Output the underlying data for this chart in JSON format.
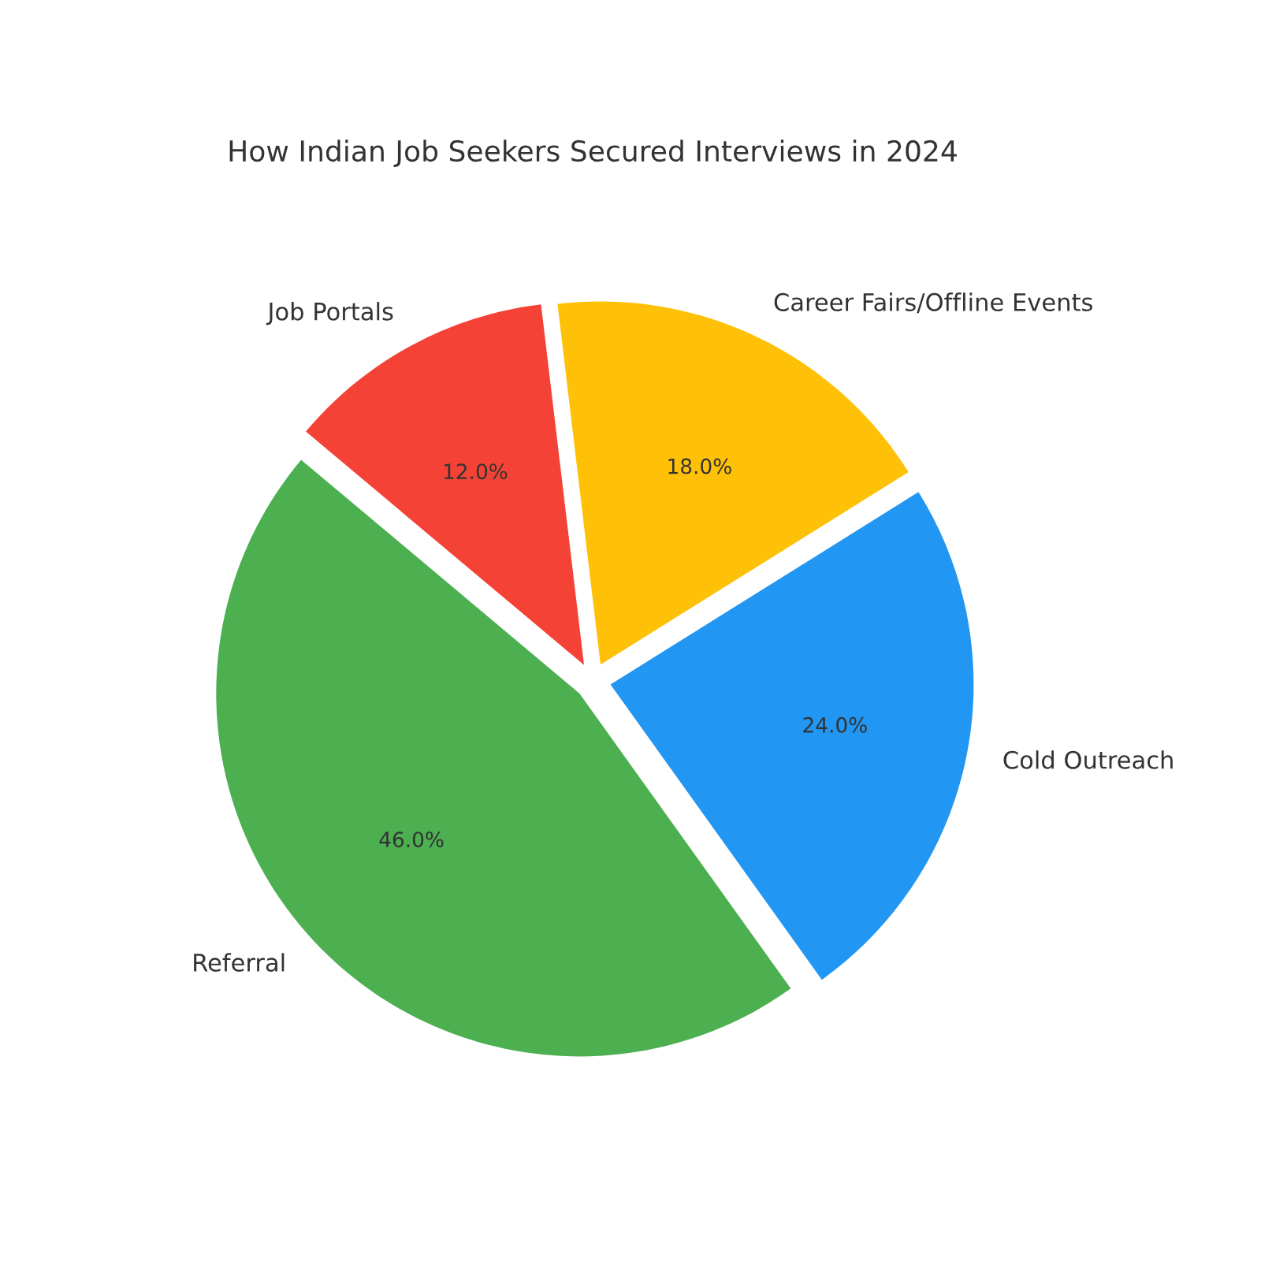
{
  "chart_data": {
    "type": "pie",
    "title": "How Indian Job Seekers Secured Interviews in 2024",
    "categories": [
      "Referral",
      "Cold Outreach",
      "Career Fairs/Offline Events",
      "Job Portals"
    ],
    "values": [
      46,
      24,
      18,
      12
    ],
    "value_labels": [
      "46.0%",
      "24.0%",
      "18.0%",
      "12.0%"
    ],
    "colors": [
      "#4caf50",
      "#2196f3",
      "#ffc107",
      "#f44336"
    ]
  }
}
